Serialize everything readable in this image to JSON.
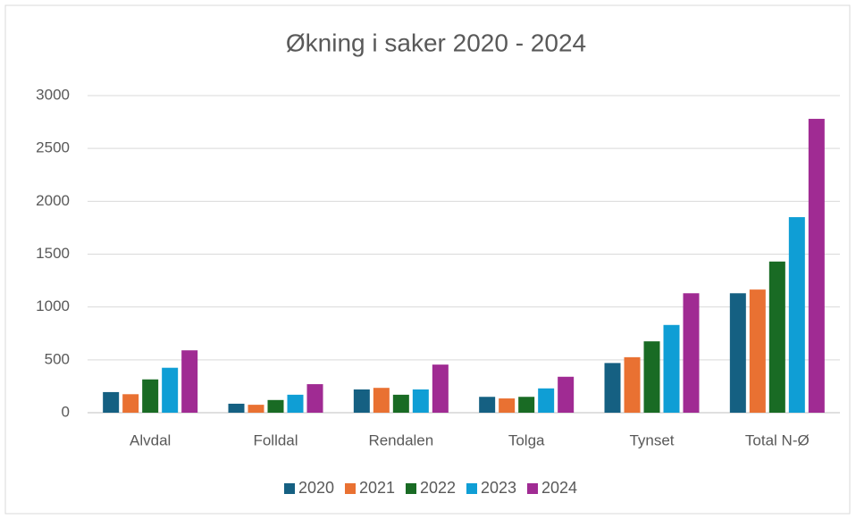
{
  "chart_data": {
    "type": "bar",
    "title": "Økning i saker 2020 - 2024",
    "categories": [
      "Alvdal",
      "Folldal",
      "Rendalen",
      "Tolga",
      "Tynset",
      "Total N-Ø"
    ],
    "series": [
      {
        "name": "2020",
        "color": "#156082",
        "values": [
          195,
          85,
          220,
          150,
          470,
          1130
        ]
      },
      {
        "name": "2021",
        "color": "#e97132",
        "values": [
          175,
          75,
          235,
          135,
          525,
          1165
        ]
      },
      {
        "name": "2022",
        "color": "#196b24",
        "values": [
          315,
          120,
          170,
          150,
          675,
          1430
        ]
      },
      {
        "name": "2023",
        "color": "#0f9ed5",
        "values": [
          425,
          170,
          220,
          230,
          830,
          1850
        ]
      },
      {
        "name": "2024",
        "color": "#a02b93",
        "values": [
          590,
          270,
          455,
          340,
          1130,
          2780
        ]
      }
    ],
    "ylim": [
      0,
      3000
    ],
    "yticks": [
      0,
      500,
      1000,
      1500,
      2000,
      2500,
      3000
    ],
    "grid": true,
    "legend": "bottom"
  }
}
